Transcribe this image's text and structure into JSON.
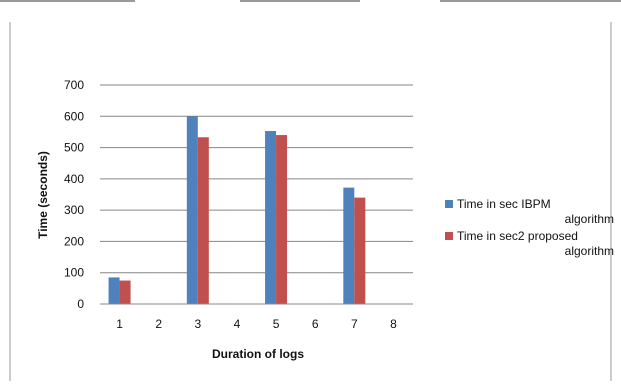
{
  "chart_data": {
    "type": "bar",
    "title": "",
    "xlabel": "Duration of logs",
    "ylabel": "Time (seconds)",
    "categories": [
      "1",
      "2",
      "3",
      "4",
      "5",
      "6",
      "7",
      "8"
    ],
    "ylim": [
      0,
      700
    ],
    "yticks": [
      0,
      100,
      200,
      300,
      400,
      500,
      600,
      700
    ],
    "grid": true,
    "legend_position": "right",
    "series": [
      {
        "name": "Time in sec  IBPM algorithm",
        "legend_lines": [
          "Time in sec  IBPM",
          "algorithm"
        ],
        "color": "#4f81bd",
        "values": [
          85,
          null,
          600,
          null,
          553,
          null,
          372,
          null
        ]
      },
      {
        "name": "Time in sec2 proposed algorithm",
        "legend_lines": [
          "Time in sec2 proposed",
          "algorithm"
        ],
        "color": "#c0504d",
        "values": [
          75,
          null,
          533,
          null,
          540,
          null,
          340,
          null
        ]
      }
    ]
  }
}
